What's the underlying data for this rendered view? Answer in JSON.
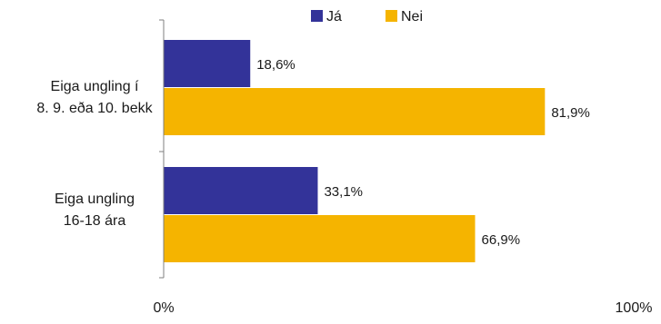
{
  "chart_data": {
    "type": "bar",
    "orientation": "horizontal",
    "categories": [
      [
        "Eiga ungling í",
        "8. 9. eða 10. bekk"
      ],
      [
        "Eiga ungling",
        "16-18 ára"
      ]
    ],
    "series": [
      {
        "name": "Já",
        "color": "#333399",
        "values": [
          18.6,
          33.1
        ],
        "labels": [
          "18,6%",
          "33,1%"
        ]
      },
      {
        "name": "Nei",
        "color": "#f5b400",
        "values": [
          81.9,
          66.9
        ],
        "labels": [
          "81,9%",
          "66,9%"
        ]
      }
    ],
    "xlim": [
      0,
      100
    ],
    "xticks": [
      "0%",
      "100%"
    ],
    "legend": "top-center",
    "grid": false
  }
}
